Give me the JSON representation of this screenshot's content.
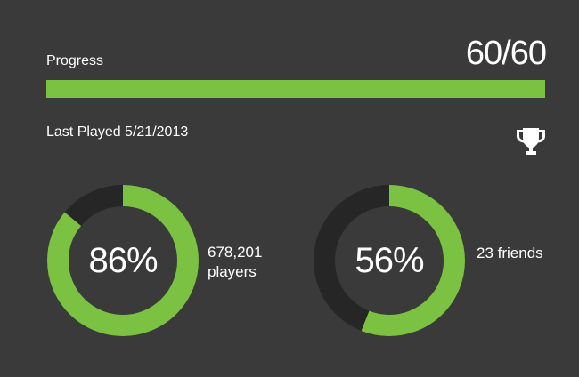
{
  "progress": {
    "label": "Progress",
    "value_text": "60/60",
    "fraction": 1.0,
    "fill_color": "#7cc242",
    "track_color": "#2b2b2b"
  },
  "last_played": "Last Played 5/21/2013",
  "trophy_icon": "trophy-icon",
  "stats": {
    "players": {
      "percent_text": "86%",
      "fraction": 0.86,
      "count_line1": "678,201",
      "count_line2": "players"
    },
    "friends": {
      "percent_text": "56%",
      "fraction": 0.56,
      "count_text": "23 friends"
    }
  },
  "colors": {
    "background": "#3a3a3a",
    "accent": "#7cc242",
    "ring_track": "#262626",
    "text": "#ffffff"
  }
}
